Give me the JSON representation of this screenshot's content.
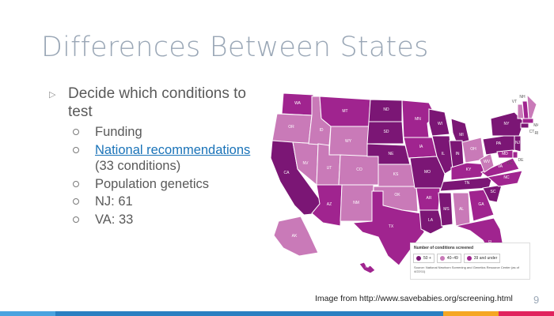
{
  "slide": {
    "title": "Differences Between States",
    "main_bullet": "Decide which conditions to test",
    "sub_bullets": [
      {
        "text": "Funding"
      },
      {
        "link": "National recommendations",
        "text": " (33 conditions)"
      },
      {
        "text": "Population genetics"
      },
      {
        "text": "NJ: 61"
      },
      {
        "text": "VA: 33"
      }
    ],
    "caption": "Image from http://www.savebabies.org/screening.html",
    "page_number": "9"
  },
  "map": {
    "legend_title": "Number of conditions screened",
    "legend_items": [
      {
        "label": "50 +",
        "color": "#7b1675"
      },
      {
        "label": "40–49",
        "color": "#c97ab8"
      },
      {
        "label": "39 and under",
        "color": "#a0248f"
      }
    ],
    "source": "Source: National Newborn Screening and Genetics Resource Center (as of 4/22/11)",
    "state_labels": [
      "WA",
      "OR",
      "CA",
      "NV",
      "ID",
      "MT",
      "WY",
      "UT",
      "AZ",
      "CO",
      "NM",
      "ND",
      "SD",
      "NE",
      "KS",
      "OK",
      "TX",
      "MN",
      "IA",
      "MO",
      "AR",
      "LA",
      "WI",
      "IL",
      "MS",
      "MI",
      "IN",
      "KY",
      "TN",
      "AL",
      "GA",
      "FL",
      "OH",
      "WV",
      "VA",
      "NC",
      "SC",
      "PA",
      "NY",
      "VT",
      "NH",
      "MA",
      "CT",
      "RI",
      "NJ",
      "DE",
      "MD",
      "DC",
      "AK",
      "HI"
    ]
  },
  "colors": {
    "title": "#9aa7b6",
    "text": "#595959",
    "link": "#1a73b8",
    "dark_purple": "#7b1675",
    "medium_purple": "#a0248f",
    "light_purple": "#c97ab8",
    "footer_bar": [
      "#4aa3df",
      "#2a7fc1",
      "#f5a623",
      "#e0245e"
    ]
  }
}
